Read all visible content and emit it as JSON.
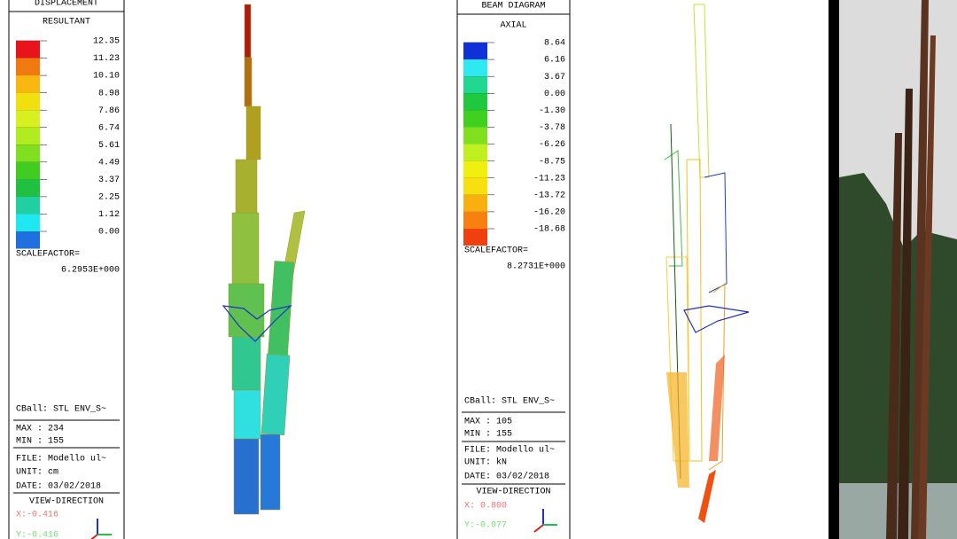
{
  "panels": [
    {
      "title": "DISPLACEMENT",
      "subtitle": "RESULTANT",
      "legend_labels": [
        "12.35",
        "11.23",
        "10.10",
        "8.98",
        "7.86",
        "6.74",
        "5.61",
        "4.49",
        "3.37",
        "2.25",
        "1.12",
        "0.00"
      ],
      "swatch_colors": [
        "#e8141c",
        "#f07a10",
        "#f8b810",
        "#f0e010",
        "#d8f020",
        "#b0ec20",
        "#80e020",
        "#40cc20",
        "#20c040",
        "#20d0a0",
        "#20e8f0",
        "#2070e0"
      ],
      "scale_label": "SCALEFACTOR=",
      "scale_value": "6.2953E+000",
      "cball": "CBall: STL ENV_S~",
      "max": "MAX : 234",
      "min": "MIN : 155",
      "file": "FILE: Modello ul~",
      "unit": "UNIT: cm",
      "date": "DATE: 03/02/2018",
      "view_title": "VIEW-DIRECTION",
      "view_x": "X:-0.416",
      "view_y": "Y:-0.416"
    },
    {
      "title": "BEAM DIAGRAM",
      "subtitle": "AXIAL",
      "legend_labels": [
        "8.64",
        "6.16",
        "3.67",
        "0.00",
        "-1.30",
        "-3.78",
        "-6.26",
        "-8.75",
        "-11.23",
        "-13.72",
        "-16.20",
        "-18.68"
      ],
      "swatch_colors": [
        "#1030d8",
        "#30e8f0",
        "#20d890",
        "#20c840",
        "#40d020",
        "#80e020",
        "#c0f020",
        "#f0f010",
        "#f8e010",
        "#f8b010",
        "#f88010",
        "#f04010"
      ],
      "scale_label": "SCALEFACTOR=",
      "scale_value": "8.2731E+000",
      "cball": "CBall: STL ENV_S~",
      "max": "MAX : 105",
      "min": "MIN : 155",
      "file": "FILE: Modello ul~",
      "unit": "UNIT: kN",
      "date": "DATE: 03/02/2018",
      "view_title": "VIEW-DIRECTION",
      "view_x": "X: 0.800",
      "view_y": "Y:-0.077"
    }
  ]
}
